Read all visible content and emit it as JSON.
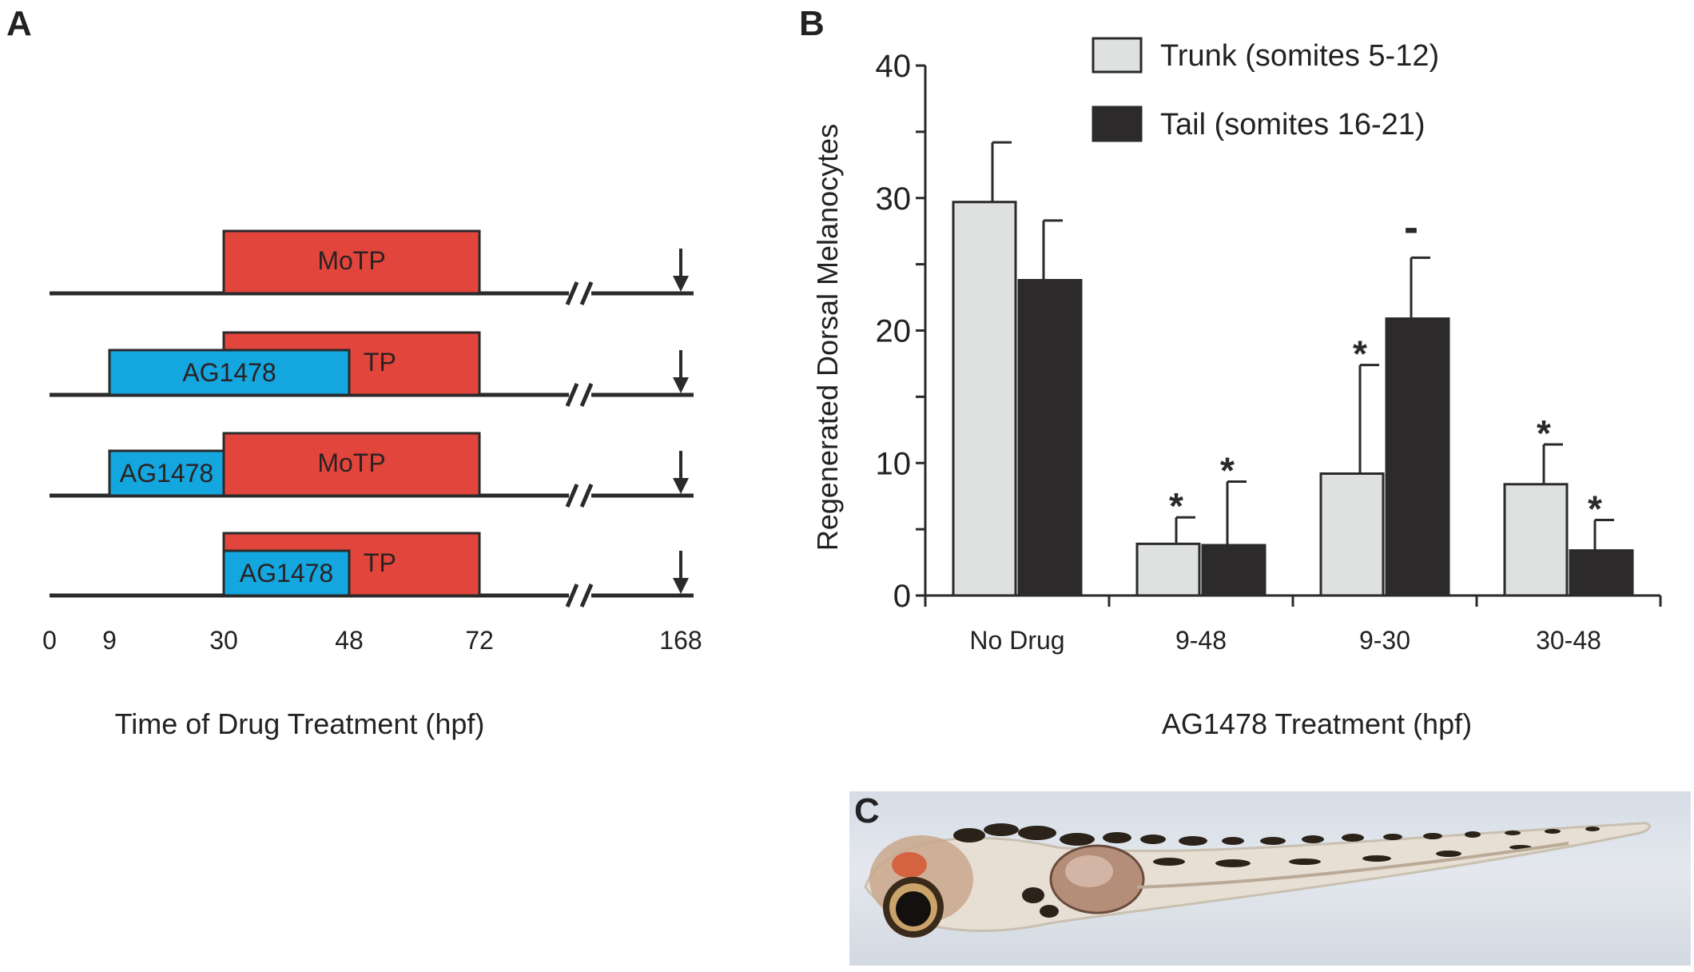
{
  "panels": {
    "a_label": "A",
    "b_label": "B",
    "c_label": "C"
  },
  "panel_a": {
    "title": "",
    "xlabel": "Time of Drug Treatment (hpf)",
    "ticks": [
      0,
      9,
      30,
      48,
      72,
      168
    ],
    "tick_labels": [
      "0",
      "9",
      "30",
      "48",
      "72",
      "168"
    ],
    "rows": [
      {
        "bars": [
          {
            "label": "MoTP",
            "start": 30,
            "end": 72,
            "color": "#e2453c",
            "visible_text": "MoTP"
          }
        ]
      },
      {
        "bars": [
          {
            "label": "MoTP",
            "start": 30,
            "end": 72,
            "color": "#e2453c",
            "visible_text": "TP"
          },
          {
            "label": "AG1478",
            "start": 9,
            "end": 48,
            "color": "#13a6df",
            "visible_text": "AG1478"
          }
        ]
      },
      {
        "bars": [
          {
            "label": "MoTP",
            "start": 30,
            "end": 72,
            "color": "#e2453c",
            "visible_text": "MoTP"
          },
          {
            "label": "AG1478",
            "start": 9,
            "end": 30,
            "color": "#13a6df",
            "visible_text": "AG1478"
          }
        ]
      },
      {
        "bars": [
          {
            "label": "MoTP",
            "start": 30,
            "end": 72,
            "color": "#e2453c",
            "visible_text": "TP"
          },
          {
            "label": "AG1478",
            "start": 30,
            "end": 48,
            "color": "#13a6df",
            "visible_text": "AG1478"
          }
        ]
      }
    ],
    "axis_break": true,
    "arrow_at": 168
  },
  "chart_data": {
    "type": "bar",
    "title": "",
    "xlabel": "AG1478 Treatment (hpf)",
    "ylabel": "Regenerated Dorsal Melanocytes",
    "ylim": [
      0,
      40
    ],
    "yticks": [
      0,
      10,
      20,
      30,
      40
    ],
    "categories": [
      "No Drug",
      "9-48",
      "9-30",
      "30-48"
    ],
    "series": [
      {
        "name": "Trunk (somites 5-12)",
        "color": "#dfe1e0",
        "values": [
          29.7,
          3.9,
          9.2,
          8.4
        ],
        "errors": [
          4.5,
          2.0,
          8.2,
          3.0
        ],
        "annotations": [
          "",
          "*",
          "*",
          "*"
        ]
      },
      {
        "name": "Tail (somites 16-21)",
        "color": "#2c2a2b",
        "values": [
          23.8,
          3.8,
          20.9,
          3.4
        ],
        "errors": [
          4.5,
          4.8,
          4.6,
          2.3
        ],
        "annotations": [
          "",
          "*",
          "-",
          "*"
        ]
      }
    ],
    "legend": "top-right",
    "grid": false
  },
  "photo": {
    "description_icon": "zebrafish-larva-image"
  }
}
